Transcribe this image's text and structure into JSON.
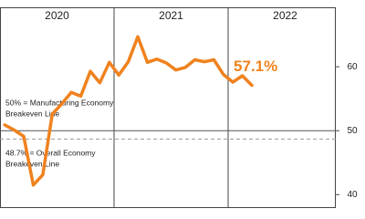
{
  "chart_data": {
    "type": "line",
    "year_labels": [
      "2020",
      "2021",
      "2022"
    ],
    "categories": [
      null,
      null,
      null,
      null,
      null,
      null,
      null,
      null,
      null,
      null,
      null,
      null,
      null,
      null,
      null,
      null,
      null,
      null,
      null,
      null,
      null,
      null,
      null,
      null,
      null,
      null,
      null
    ],
    "values": [
      50.9,
      50.1,
      49.1,
      41.5,
      43.1,
      52.6,
      54.2,
      56.0,
      55.4,
      59.3,
      57.5,
      60.7,
      58.7,
      60.8,
      64.7,
      60.7,
      61.2,
      60.6,
      59.5,
      59.9,
      61.1,
      60.8,
      61.1,
      58.8,
      57.6,
      58.6,
      57.1
    ],
    "color": "#f0821e",
    "end_label": "57.1%",
    "ylim": [
      37.9,
      69.3
    ],
    "yticks": [
      40,
      50,
      60
    ],
    "reference_lines": [
      {
        "value": 50,
        "style": "solid",
        "label_lines": [
          "50% = Manufacturing Economy",
          "Breakeven Line"
        ]
      },
      {
        "value": 48.7,
        "style": "dashed",
        "label_lines": [
          "48.7% = Overall Economy",
          "Breakeven Line"
        ]
      }
    ]
  }
}
